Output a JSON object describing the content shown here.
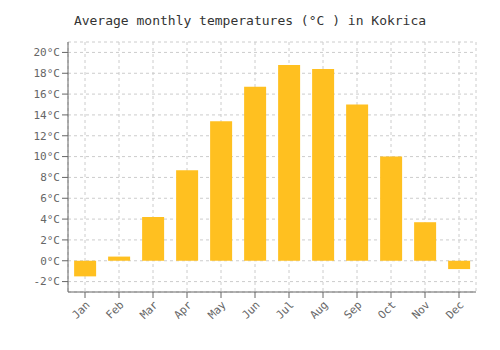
{
  "chart_data": {
    "type": "bar",
    "title": "Average monthly temperatures (°C ) in Kokrica",
    "categories": [
      "Jan",
      "Feb",
      "Mar",
      "Apr",
      "May",
      "Jun",
      "Jul",
      "Aug",
      "Sep",
      "Oct",
      "Nov",
      "Dec"
    ],
    "values": [
      -1.5,
      0.4,
      4.2,
      8.7,
      13.4,
      16.7,
      18.8,
      18.4,
      15.0,
      10.0,
      3.7,
      -0.8
    ],
    "color": "#FFC020",
    "ylim": [
      -3,
      21
    ],
    "yticks": [
      {
        "value": -2,
        "label": "-2°C"
      },
      {
        "value": 0,
        "label": "0°C"
      },
      {
        "value": 2,
        "label": "2°C"
      },
      {
        "value": 4,
        "label": "4°C"
      },
      {
        "value": 6,
        "label": "6°C"
      },
      {
        "value": 8,
        "label": "8°C"
      },
      {
        "value": 10,
        "label": "10°C"
      },
      {
        "value": 12,
        "label": "12°C"
      },
      {
        "value": 14,
        "label": "14°C"
      },
      {
        "value": 16,
        "label": "16°C"
      },
      {
        "value": 18,
        "label": "18°C"
      },
      {
        "value": 20,
        "label": "20°C"
      }
    ],
    "grid": true
  }
}
